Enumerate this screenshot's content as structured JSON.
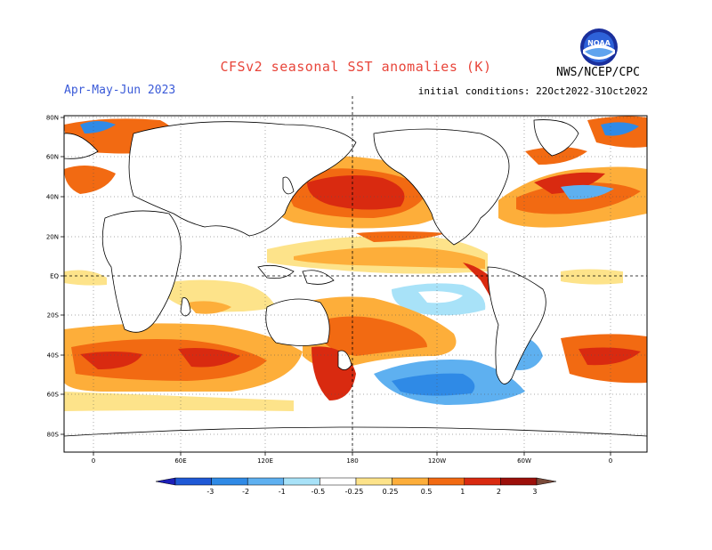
{
  "header": {
    "title": "CFSv2 seasonal SST anomalies (K)",
    "season": "Apr-May-Jun 2023",
    "initial_conditions": "initial conditions: 22Oct2022-31Oct2022",
    "agency": "NWS/NCEP/CPC",
    "logo_text": "NOAA"
  },
  "map": {
    "lat_labels": [
      "80N",
      "60N",
      "40N",
      "20N",
      "EQ",
      "20S",
      "40S",
      "60S",
      "80S"
    ],
    "lon_labels": [
      "0",
      "60E",
      "120E",
      "180",
      "120W",
      "60W",
      "0"
    ]
  },
  "colorbar": {
    "tick_labels": [
      "-3",
      "-2",
      "-1",
      "-0.5",
      "-0.25",
      "0.25",
      "0.5",
      "1",
      "2",
      "3"
    ],
    "colors": [
      "#1c1fb8",
      "#1f59d6",
      "#2f8ae6",
      "#5eb0f0",
      "#a8e2f8",
      "#ffffff",
      "#fde38a",
      "#fdae3a",
      "#f26a12",
      "#d92a10",
      "#9c0f0a",
      "#7a4a3a"
    ]
  },
  "palette": {
    "ocean_neutral": "#ffffff",
    "land_outline": "#000000",
    "warm_light": "#fde38a",
    "warm_med": "#fdae3a",
    "warm_strong": "#f26a12",
    "warm_red": "#d92a10",
    "warm_dark": "#9c0f0a",
    "cool_light": "#a8e2f8",
    "cool_med": "#5eb0f0",
    "cool_strong": "#2f8ae6",
    "cool_dark": "#1f59d6"
  }
}
